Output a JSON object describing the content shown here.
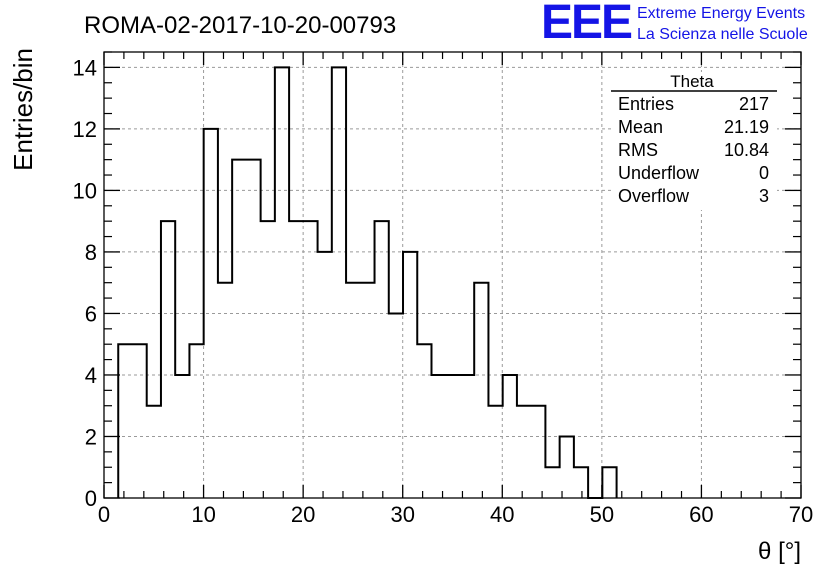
{
  "branding": {
    "logo_text": "EEE",
    "line1": "Extreme Energy Events",
    "line2": "La Scienza nelle Scuole",
    "color": "#1414e6"
  },
  "chart_data": {
    "type": "bar",
    "title": "ROMA-02-2017-10-20-00793",
    "xlabel": "θ [°]",
    "ylabel": "Entries/bin",
    "xlim": [
      0,
      70
    ],
    "ylim": [
      0,
      14.5
    ],
    "xticks": [
      0,
      10,
      20,
      30,
      40,
      50,
      60,
      70
    ],
    "yticks": [
      0,
      2,
      4,
      6,
      8,
      10,
      12,
      14
    ],
    "grid": true,
    "bin_width": 1.43,
    "bin_start": 1.43,
    "values": [
      5,
      5,
      3,
      9,
      4,
      5,
      12,
      7,
      11,
      11,
      9,
      14,
      9,
      9,
      8,
      14,
      7,
      7,
      9,
      6,
      8,
      5,
      4,
      4,
      4,
      7,
      3,
      4,
      3,
      3,
      1,
      2,
      1,
      0,
      1
    ],
    "stats_box": {
      "title": "Theta",
      "placement": "top-right",
      "rows": [
        {
          "label": "Entries",
          "value": "217"
        },
        {
          "label": "Mean",
          "value": "21.19"
        },
        {
          "label": "RMS",
          "value": "10.84"
        },
        {
          "label": "Underflow",
          "value": "0"
        },
        {
          "label": "Overflow",
          "value": "3"
        }
      ]
    }
  }
}
